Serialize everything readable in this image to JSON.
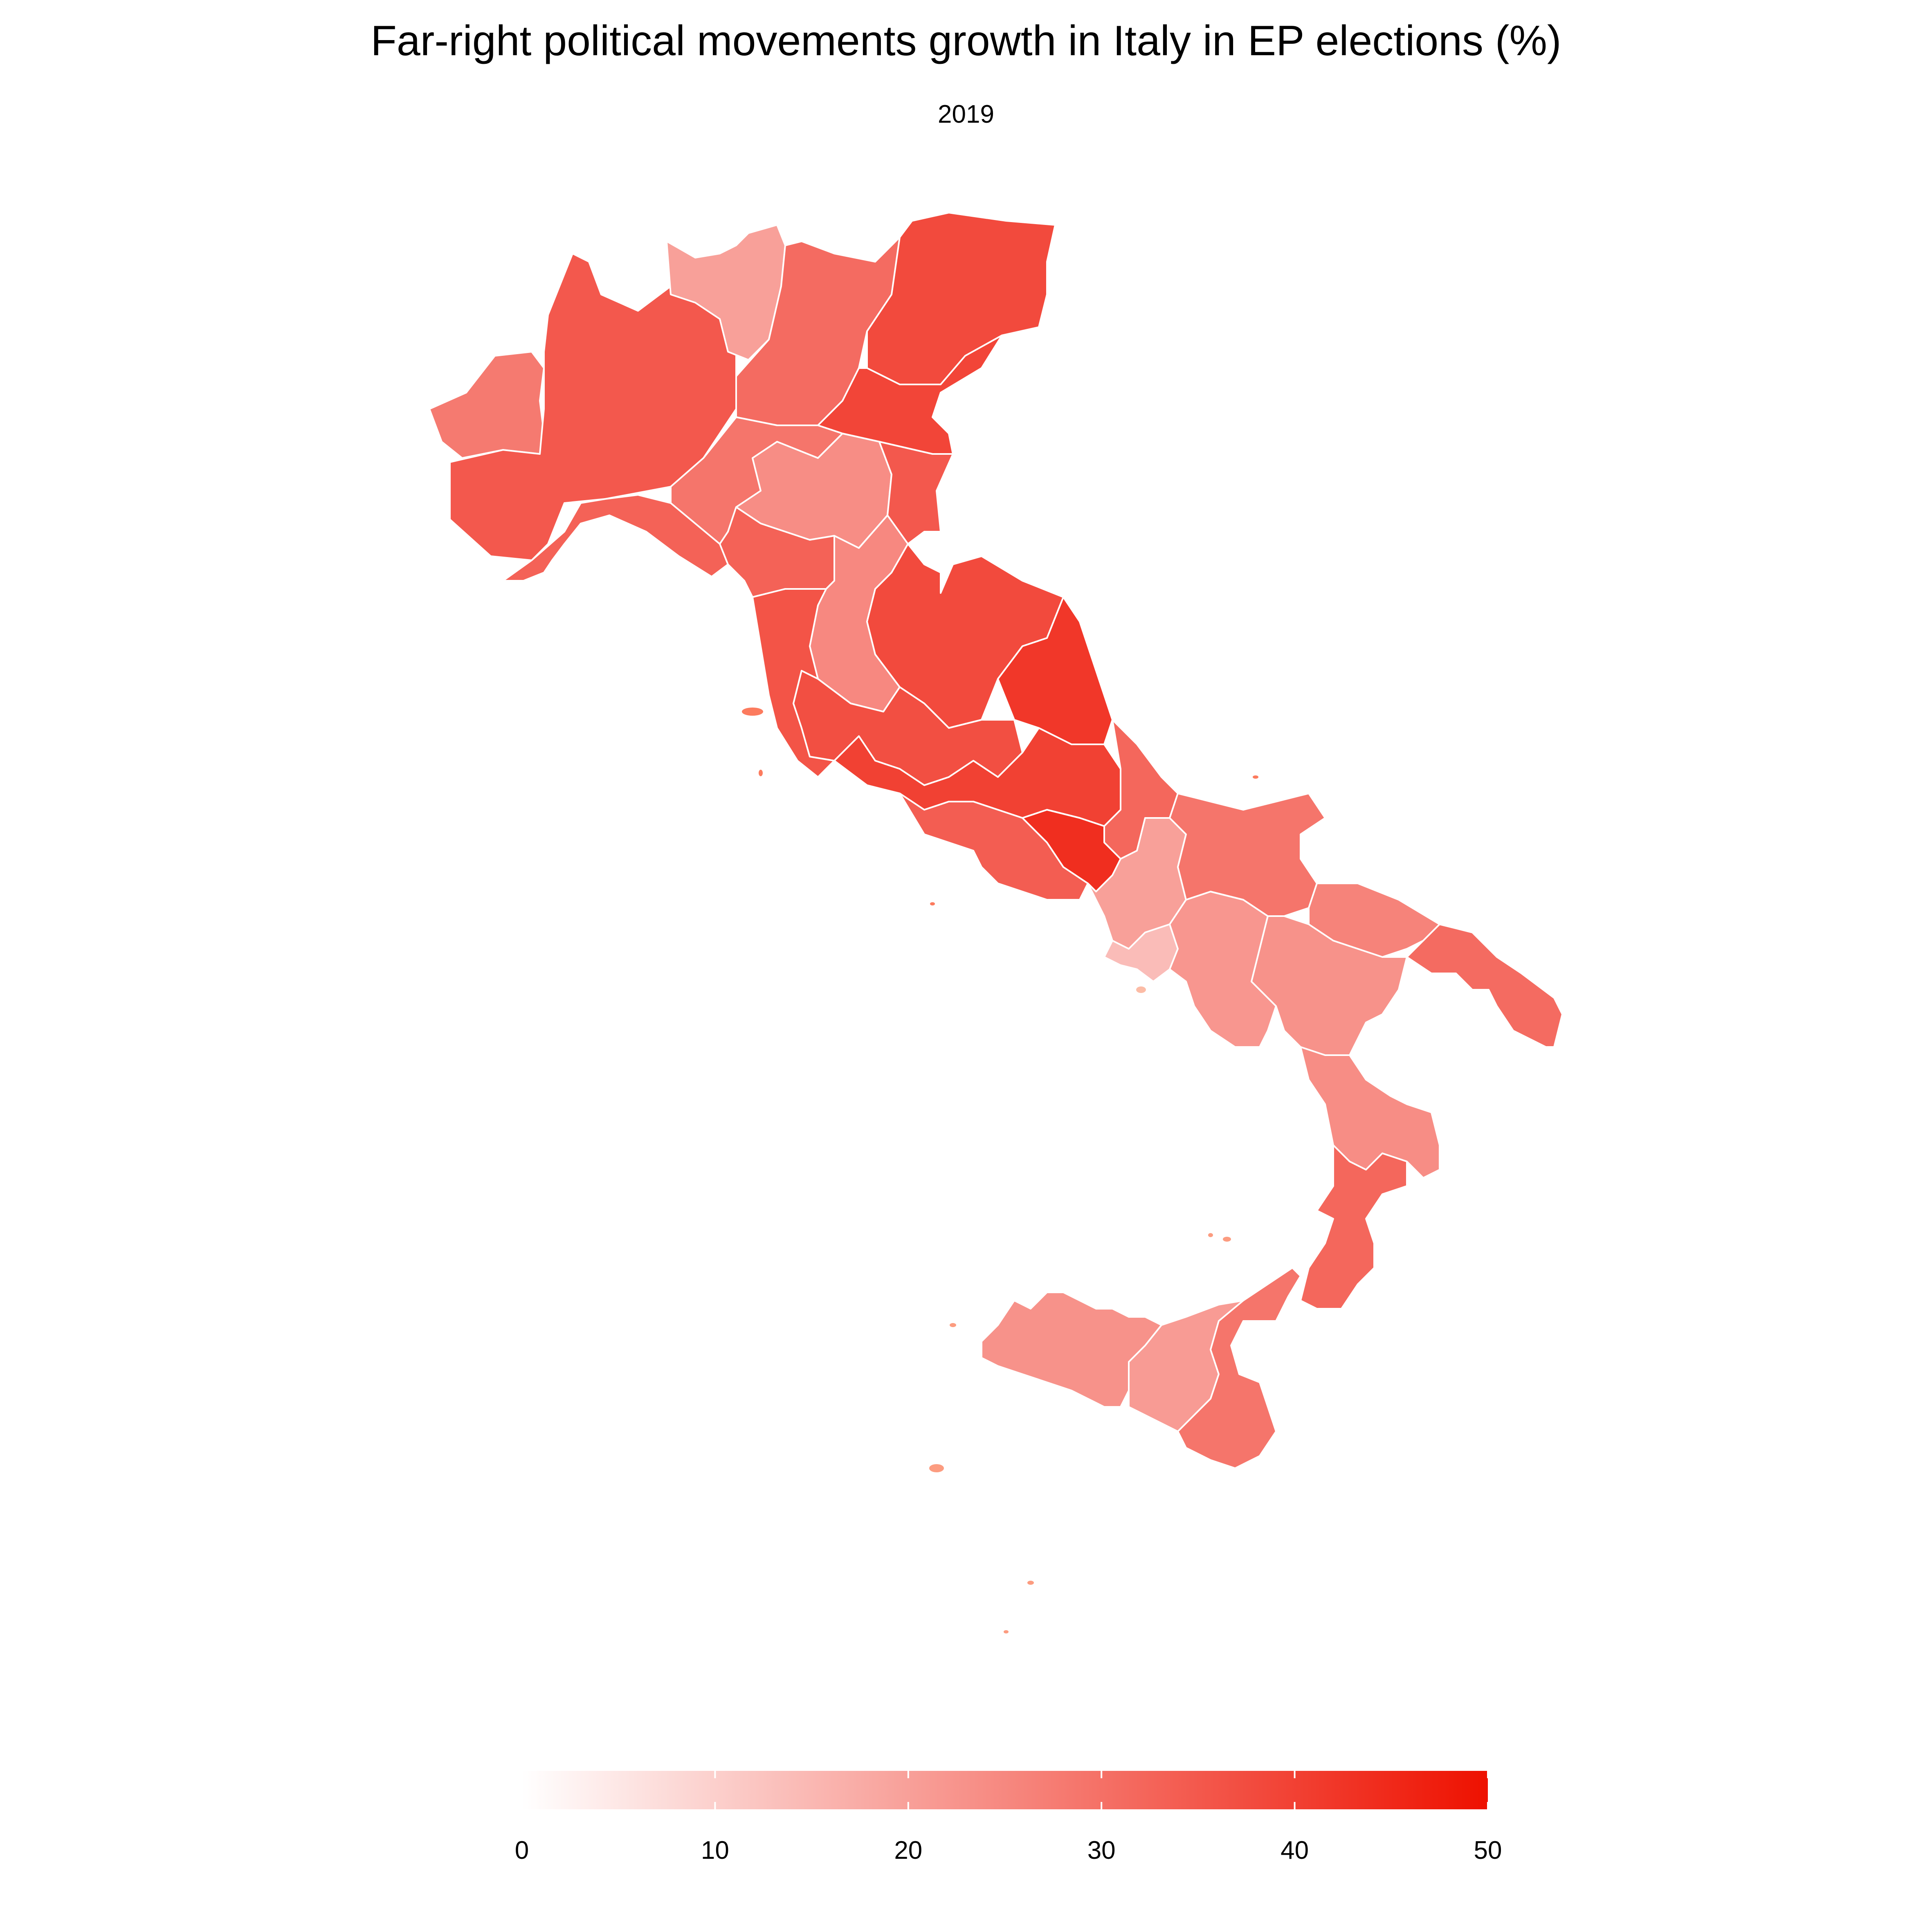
{
  "title": "Far-right political movements growth in Italy in EP elections (%)",
  "subtitle": "2019",
  "legend": {
    "min": 0,
    "max": 50,
    "ticks": [
      0,
      10,
      20,
      30,
      40,
      50
    ],
    "tick_labels": [
      "0",
      "10",
      "20",
      "30",
      "40",
      "50"
    ],
    "color_low": "#ffffff",
    "color_high": "#ee1100"
  },
  "chart_data": {
    "type": "choropleth",
    "title": "Far-right political movements growth in Italy in EP elections (%)",
    "subtitle": "2019",
    "legend_placement": "bottom",
    "value_range": [
      0,
      50
    ],
    "regions": [
      {
        "area": "north-west-alps",
        "value": 28
      },
      {
        "area": "north-west-plain",
        "value": 35
      },
      {
        "area": "liguria-coast",
        "value": 33
      },
      {
        "area": "alpine-border",
        "value": 20
      },
      {
        "area": "lombardy-east",
        "value": 31
      },
      {
        "area": "north-east",
        "value": 38
      },
      {
        "area": "north-east-coast",
        "value": 39
      },
      {
        "area": "emilia-west",
        "value": 29
      },
      {
        "area": "emilia-south",
        "value": 24
      },
      {
        "area": "romagna",
        "value": 35
      },
      {
        "area": "tuscany-north",
        "value": 33
      },
      {
        "area": "tuscany-inner",
        "value": 25
      },
      {
        "area": "tuscany-coast",
        "value": 36
      },
      {
        "area": "marche-umbria",
        "value": 38
      },
      {
        "area": "abruzzo-coast",
        "value": 42
      },
      {
        "area": "lazio-north",
        "value": 37
      },
      {
        "area": "lazio-south",
        "value": 40
      },
      {
        "area": "lazio-coast",
        "value": 34
      },
      {
        "area": "molise",
        "value": 32
      },
      {
        "area": "campania-north",
        "value": 20
      },
      {
        "area": "naples",
        "value": 14
      },
      {
        "area": "campania-south",
        "value": 22
      },
      {
        "area": "apulia-north",
        "value": 29
      },
      {
        "area": "apulia-bari",
        "value": 26
      },
      {
        "area": "apulia-south",
        "value": 31
      },
      {
        "area": "basilicata",
        "value": 23
      },
      {
        "area": "calabria-north",
        "value": 24
      },
      {
        "area": "calabria-south",
        "value": 32
      },
      {
        "area": "sicily-west",
        "value": 23
      },
      {
        "area": "sicily-centre",
        "value": 21
      },
      {
        "area": "sicily-east",
        "value": 29
      }
    ]
  }
}
